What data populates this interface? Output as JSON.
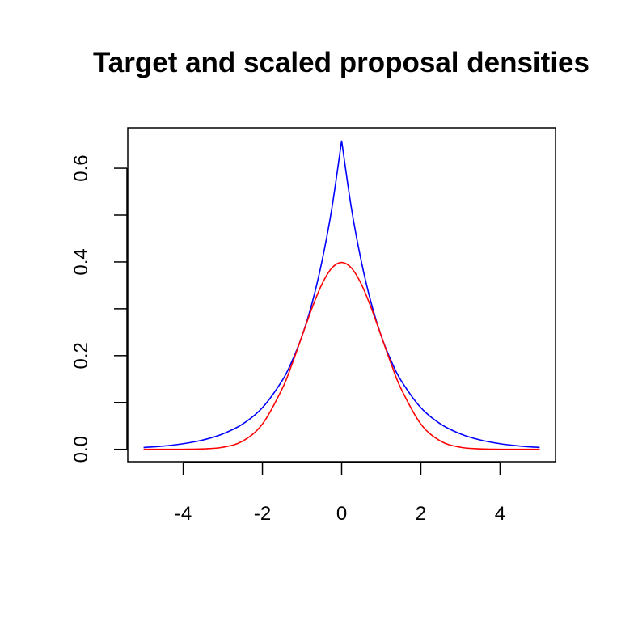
{
  "chart_data": {
    "type": "line",
    "title": "Target and scaled proposal densities",
    "xlabel": "",
    "ylabel": "",
    "xlim": [
      -5.4,
      5.4
    ],
    "ylim": [
      -0.0264,
      0.6864
    ],
    "x_ticks": [
      -4,
      -2,
      0,
      2,
      4
    ],
    "x_tick_labels": [
      "-4",
      "-2",
      "0",
      "2",
      "4"
    ],
    "y_ticks": [
      0.0,
      0.1,
      0.2,
      0.3,
      0.4,
      0.5,
      0.6
    ],
    "y_tick_labels": [
      "0.0",
      "",
      "0.2",
      "",
      "0.4",
      "",
      "0.6"
    ],
    "grid": false,
    "legend": "none",
    "series": [
      {
        "color": "#0000ff",
        "x": [
          -5,
          -4.5,
          -4,
          -3.5,
          -3,
          -2.5,
          -2,
          -1.5,
          -1.25,
          -1,
          -0.75,
          -0.5,
          -0.25,
          0,
          0.25,
          0.5,
          0.75,
          1,
          1.25,
          1.5,
          2,
          2.5,
          3,
          3.5,
          4,
          4.5,
          5
        ],
        "y": [
          0.004,
          0.007,
          0.012,
          0.02,
          0.033,
          0.054,
          0.089,
          0.147,
          0.189,
          0.242,
          0.311,
          0.4,
          0.513,
          0.659,
          0.513,
          0.4,
          0.311,
          0.242,
          0.189,
          0.147,
          0.089,
          0.054,
          0.033,
          0.02,
          0.012,
          0.007,
          0.004
        ]
      },
      {
        "color": "#ff0000",
        "x": [
          -5,
          -4.5,
          -4,
          -3.5,
          -3,
          -2.5,
          -2,
          -1.5,
          -1.25,
          -1,
          -0.75,
          -0.5,
          -0.25,
          0,
          0.25,
          0.5,
          0.75,
          1,
          1.25,
          1.5,
          2,
          2.5,
          3,
          3.5,
          4,
          4.5,
          5
        ],
        "y": [
          0.0,
          0.0,
          0.0001,
          0.0009,
          0.0044,
          0.0175,
          0.054,
          0.1295,
          0.1826,
          0.242,
          0.3011,
          0.3521,
          0.3867,
          0.3989,
          0.3867,
          0.3521,
          0.3011,
          0.242,
          0.1826,
          0.1295,
          0.054,
          0.0175,
          0.0044,
          0.0009,
          0.0001,
          0.0,
          0.0
        ]
      }
    ]
  }
}
